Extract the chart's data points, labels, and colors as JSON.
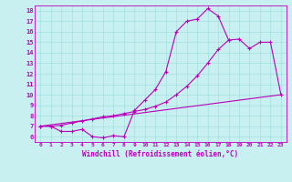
{
  "xlabel": "Windchill (Refroidissement éolien,°C)",
  "bg_color": "#c8f0f0",
  "line_color": "#bb00bb",
  "grid_color": "#99dddd",
  "xlim": [
    -0.5,
    23.5
  ],
  "ylim": [
    5.5,
    18.5
  ],
  "xticks": [
    0,
    1,
    2,
    3,
    4,
    5,
    6,
    7,
    8,
    9,
    10,
    11,
    12,
    13,
    14,
    15,
    16,
    17,
    18,
    19,
    20,
    21,
    22,
    23
  ],
  "yticks": [
    6,
    7,
    8,
    9,
    10,
    11,
    12,
    13,
    14,
    15,
    16,
    17,
    18
  ],
  "line1_x": [
    0,
    1,
    2,
    3,
    4,
    5,
    6,
    7,
    8,
    9,
    10,
    11,
    12,
    13,
    14,
    15,
    16,
    17,
    18
  ],
  "line1_y": [
    7.0,
    7.0,
    6.5,
    6.5,
    6.7,
    6.0,
    5.9,
    6.1,
    6.0,
    8.5,
    9.5,
    10.5,
    12.2,
    16.0,
    17.0,
    17.2,
    18.2,
    17.5,
    15.2
  ],
  "line2_x": [
    0,
    1,
    2,
    3,
    4,
    5,
    6,
    7,
    8,
    9,
    10,
    11,
    12,
    13,
    14,
    15,
    16,
    17,
    18,
    19,
    20,
    21,
    22,
    23
  ],
  "line2_y": [
    7.0,
    7.0,
    7.1,
    7.3,
    7.5,
    7.7,
    7.9,
    8.0,
    8.2,
    8.4,
    8.6,
    8.9,
    9.3,
    10.0,
    10.8,
    11.8,
    13.0,
    14.3,
    15.2,
    15.3,
    14.4,
    15.0,
    15.0,
    10.0
  ],
  "line3_x": [
    0,
    23
  ],
  "line3_y": [
    7.0,
    10.0
  ]
}
